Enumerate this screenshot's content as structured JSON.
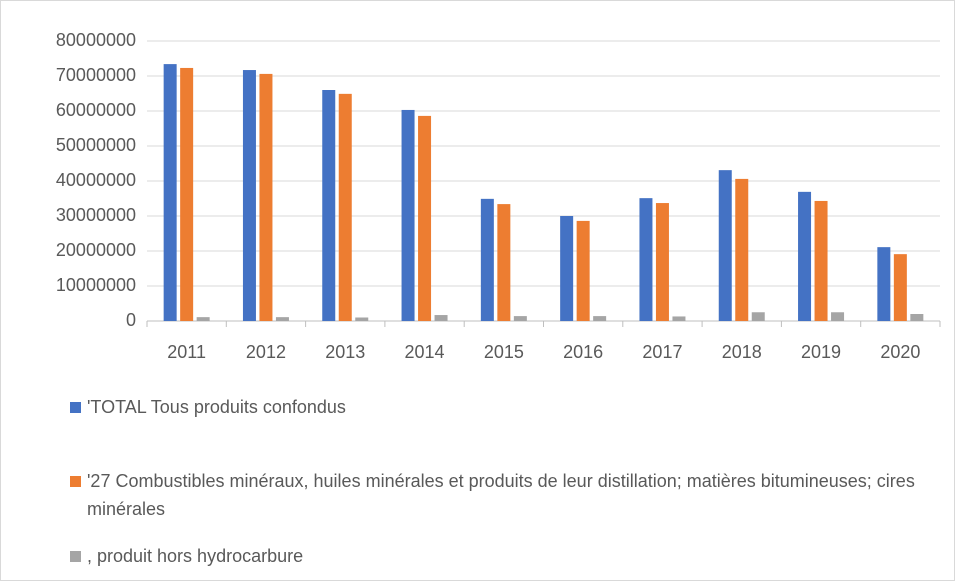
{
  "chart_data": {
    "type": "bar",
    "categories": [
      "2011",
      "2012",
      "2013",
      "2014",
      "2015",
      "2016",
      "2017",
      "2018",
      "2019",
      "2020"
    ],
    "series": [
      {
        "name": "'TOTAL Tous produits confondus",
        "color": "#4472c4",
        "values": [
          73400000,
          71700000,
          66000000,
          60300000,
          34900000,
          30000000,
          35100000,
          43100000,
          36900000,
          21100000
        ]
      },
      {
        "name": "'27 Combustibles minéraux, huiles minérales et produits de leur distillation; matières bitumineuses; cires minérales",
        "color": "#ed7d31",
        "values": [
          72300000,
          70600000,
          64900000,
          58600000,
          33400000,
          28600000,
          33700000,
          40600000,
          34300000,
          19100000
        ]
      },
      {
        "name": ", produit hors hydrocarbure",
        "color": "#a5a5a5",
        "values": [
          1100000,
          1100000,
          1000000,
          1700000,
          1400000,
          1400000,
          1300000,
          2500000,
          2500000,
          2000000
        ]
      }
    ],
    "ylim": [
      0,
      80000000
    ],
    "yticks": [
      0,
      10000000,
      20000000,
      30000000,
      40000000,
      50000000,
      60000000,
      70000000,
      80000000
    ],
    "grid": true,
    "legend": "bottom"
  }
}
